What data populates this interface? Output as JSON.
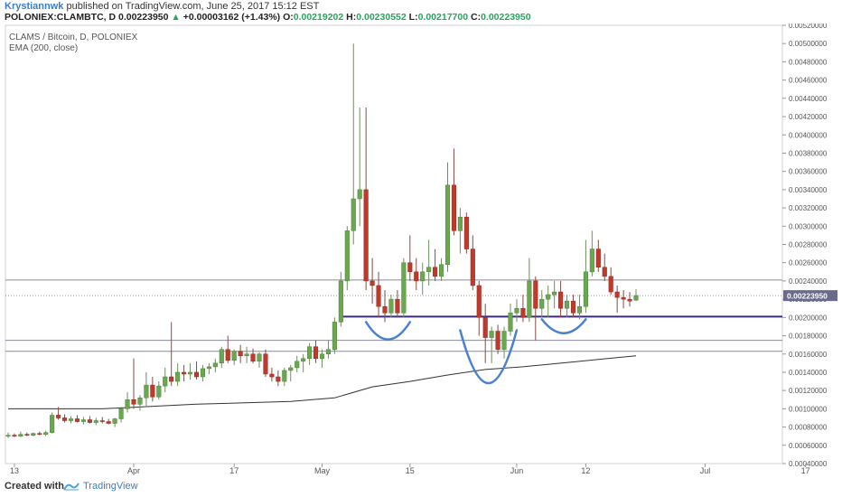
{
  "header": {
    "author": "Krystiannwk",
    "published": "published on TradingView.com, June 25, 2017 15:12 EST",
    "symbol": "POLONIEX:CLAMBTC, D",
    "last": "0.00223950",
    "change_arrow": "▲",
    "change": "+0.00003162 (+1.43%)",
    "o_label": "O:",
    "o_value": "0.00219202",
    "h_label": "H:",
    "h_value": "0.00230552",
    "l_label": "L:",
    "l_value": "0.00217700",
    "c_label": "C:",
    "c_value": "0.00223950"
  },
  "legend": {
    "title": "CLAMS / Bitcoin, D, POLONIEX",
    "indicator": "EMA (200, close)"
  },
  "footer": {
    "created": "Created with",
    "brand": "TradingView"
  },
  "colors": {
    "up": "#6aa84f",
    "down": "#c0392b",
    "ema": "#333333",
    "support": "#3c2a7a",
    "hline": "#8a8a9a",
    "arc": "#4a7fd1",
    "price_tag": "#6a6a8a"
  },
  "chart_data": {
    "type": "candlestick",
    "symbol": "CLAMS / Bitcoin, D, POLONIEX",
    "ylim": [
      0.0004,
      0.0052
    ],
    "y_ticks": [
      "0.00040000",
      "0.00060000",
      "0.00080000",
      "0.00100000",
      "0.00120000",
      "0.00140000",
      "0.00160000",
      "0.00180000",
      "0.00200000",
      "0.00220000",
      "0.00240000",
      "0.00260000",
      "0.00280000",
      "0.00300000",
      "0.00320000",
      "0.00340000",
      "0.00360000",
      "0.00380000",
      "0.00400000",
      "0.00420000",
      "0.00440000",
      "0.00460000",
      "0.00480000",
      "0.00500000",
      "0.00520000"
    ],
    "x_ticks": [
      {
        "label": "13",
        "i": 1
      },
      {
        "label": "Apr",
        "i": 20
      },
      {
        "label": "17",
        "i": 36
      },
      {
        "label": "May",
        "i": 50
      },
      {
        "label": "15",
        "i": 64
      },
      {
        "label": "Jun",
        "i": 81
      },
      {
        "label": "12",
        "i": 92
      },
      {
        "label": "Jul",
        "i": 111
      },
      {
        "label": "17",
        "i": 127
      }
    ],
    "last_price_label": "0.00223950",
    "last_price": 0.0022395,
    "candles": [
      {
        "o": 0.0007,
        "h": 0.00074,
        "l": 0.00068,
        "c": 0.00071
      },
      {
        "o": 0.00071,
        "h": 0.00073,
        "l": 0.00069,
        "c": 0.0007
      },
      {
        "o": 0.0007,
        "h": 0.00075,
        "l": 0.00069,
        "c": 0.00072
      },
      {
        "o": 0.00072,
        "h": 0.00074,
        "l": 0.0007,
        "c": 0.00071
      },
      {
        "o": 0.00071,
        "h": 0.00074,
        "l": 0.0007,
        "c": 0.00073
      },
      {
        "o": 0.00073,
        "h": 0.00075,
        "l": 0.00071,
        "c": 0.00072
      },
      {
        "o": 0.00072,
        "h": 0.00076,
        "l": 0.0007,
        "c": 0.00074
      },
      {
        "o": 0.00074,
        "h": 0.00096,
        "l": 0.00073,
        "c": 0.00093
      },
      {
        "o": 0.00093,
        "h": 0.00102,
        "l": 0.00088,
        "c": 0.0009
      },
      {
        "o": 0.0009,
        "h": 0.00094,
        "l": 0.00085,
        "c": 0.00087
      },
      {
        "o": 0.00087,
        "h": 0.00092,
        "l": 0.00084,
        "c": 0.00089
      },
      {
        "o": 0.00089,
        "h": 0.00093,
        "l": 0.00085,
        "c": 0.00086
      },
      {
        "o": 0.00086,
        "h": 0.00091,
        "l": 0.00083,
        "c": 0.00088
      },
      {
        "o": 0.00088,
        "h": 0.00092,
        "l": 0.00084,
        "c": 0.00085
      },
      {
        "o": 0.00085,
        "h": 0.0009,
        "l": 0.00082,
        "c": 0.00087
      },
      {
        "o": 0.00087,
        "h": 0.00091,
        "l": 0.00084,
        "c": 0.00086
      },
      {
        "o": 0.00086,
        "h": 0.00089,
        "l": 0.00083,
        "c": 0.00084
      },
      {
        "o": 0.00084,
        "h": 0.0009,
        "l": 0.0008,
        "c": 0.00089
      },
      {
        "o": 0.00089,
        "h": 0.00102,
        "l": 0.00085,
        "c": 0.001
      },
      {
        "o": 0.001,
        "h": 0.00118,
        "l": 0.00096,
        "c": 0.0011
      },
      {
        "o": 0.0011,
        "h": 0.00155,
        "l": 0.001,
        "c": 0.00105
      },
      {
        "o": 0.00105,
        "h": 0.00115,
        "l": 0.00098,
        "c": 0.00112
      },
      {
        "o": 0.00112,
        "h": 0.0014,
        "l": 0.00102,
        "c": 0.00126
      },
      {
        "o": 0.00126,
        "h": 0.00135,
        "l": 0.00108,
        "c": 0.00113
      },
      {
        "o": 0.00113,
        "h": 0.0013,
        "l": 0.0011,
        "c": 0.00125
      },
      {
        "o": 0.00125,
        "h": 0.00145,
        "l": 0.00118,
        "c": 0.00135
      },
      {
        "o": 0.00135,
        "h": 0.00195,
        "l": 0.00125,
        "c": 0.0013
      },
      {
        "o": 0.0013,
        "h": 0.0015,
        "l": 0.00125,
        "c": 0.0014
      },
      {
        "o": 0.0014,
        "h": 0.00148,
        "l": 0.0013,
        "c": 0.00138
      },
      {
        "o": 0.00138,
        "h": 0.0015,
        "l": 0.00132,
        "c": 0.0014
      },
      {
        "o": 0.0014,
        "h": 0.00152,
        "l": 0.00132,
        "c": 0.00135
      },
      {
        "o": 0.00135,
        "h": 0.00148,
        "l": 0.0013,
        "c": 0.00144
      },
      {
        "o": 0.00144,
        "h": 0.0015,
        "l": 0.00138,
        "c": 0.00146
      },
      {
        "o": 0.00146,
        "h": 0.00155,
        "l": 0.0014,
        "c": 0.0015
      },
      {
        "o": 0.0015,
        "h": 0.00168,
        "l": 0.00145,
        "c": 0.00165
      },
      {
        "o": 0.00165,
        "h": 0.0018,
        "l": 0.0015,
        "c": 0.00153
      },
      {
        "o": 0.00153,
        "h": 0.00165,
        "l": 0.00148,
        "c": 0.00163
      },
      {
        "o": 0.00163,
        "h": 0.0017,
        "l": 0.0015,
        "c": 0.00158
      },
      {
        "o": 0.00158,
        "h": 0.00168,
        "l": 0.0015,
        "c": 0.0016
      },
      {
        "o": 0.0016,
        "h": 0.00166,
        "l": 0.0015,
        "c": 0.00152
      },
      {
        "o": 0.00152,
        "h": 0.00162,
        "l": 0.00145,
        "c": 0.0016
      },
      {
        "o": 0.0016,
        "h": 0.00165,
        "l": 0.00135,
        "c": 0.00138
      },
      {
        "o": 0.00138,
        "h": 0.00145,
        "l": 0.0013,
        "c": 0.00135
      },
      {
        "o": 0.00135,
        "h": 0.00142,
        "l": 0.00125,
        "c": 0.0013
      },
      {
        "o": 0.0013,
        "h": 0.00145,
        "l": 0.00125,
        "c": 0.00142
      },
      {
        "o": 0.00142,
        "h": 0.00148,
        "l": 0.0013,
        "c": 0.00145
      },
      {
        "o": 0.00145,
        "h": 0.00158,
        "l": 0.0014,
        "c": 0.00152
      },
      {
        "o": 0.00152,
        "h": 0.0016,
        "l": 0.0014,
        "c": 0.00155
      },
      {
        "o": 0.00155,
        "h": 0.00172,
        "l": 0.00148,
        "c": 0.00168
      },
      {
        "o": 0.00168,
        "h": 0.00175,
        "l": 0.0015,
        "c": 0.00155
      },
      {
        "o": 0.00155,
        "h": 0.00165,
        "l": 0.00145,
        "c": 0.0016
      },
      {
        "o": 0.0016,
        "h": 0.00175,
        "l": 0.00155,
        "c": 0.00165
      },
      {
        "o": 0.00165,
        "h": 0.002,
        "l": 0.0016,
        "c": 0.00195
      },
      {
        "o": 0.00195,
        "h": 0.0025,
        "l": 0.0019,
        "c": 0.0024
      },
      {
        "o": 0.0024,
        "h": 0.003,
        "l": 0.0023,
        "c": 0.00295
      },
      {
        "o": 0.00295,
        "h": 0.005,
        "l": 0.0028,
        "c": 0.0033
      },
      {
        "o": 0.0033,
        "h": 0.0043,
        "l": 0.003,
        "c": 0.0034
      },
      {
        "o": 0.0034,
        "h": 0.0043,
        "l": 0.0023,
        "c": 0.0024
      },
      {
        "o": 0.0024,
        "h": 0.00265,
        "l": 0.00215,
        "c": 0.00235
      },
      {
        "o": 0.00235,
        "h": 0.0025,
        "l": 0.002,
        "c": 0.00212
      },
      {
        "o": 0.00212,
        "h": 0.0023,
        "l": 0.00195,
        "c": 0.00205
      },
      {
        "o": 0.00205,
        "h": 0.00225,
        "l": 0.002,
        "c": 0.0022
      },
      {
        "o": 0.0022,
        "h": 0.0023,
        "l": 0.002,
        "c": 0.00205
      },
      {
        "o": 0.00205,
        "h": 0.00265,
        "l": 0.002,
        "c": 0.0026
      },
      {
        "o": 0.0026,
        "h": 0.0029,
        "l": 0.0024,
        "c": 0.0025
      },
      {
        "o": 0.0025,
        "h": 0.00265,
        "l": 0.0023,
        "c": 0.0024
      },
      {
        "o": 0.0024,
        "h": 0.0026,
        "l": 0.00225,
        "c": 0.0025
      },
      {
        "o": 0.0025,
        "h": 0.00285,
        "l": 0.00235,
        "c": 0.00255
      },
      {
        "o": 0.00255,
        "h": 0.00275,
        "l": 0.0024,
        "c": 0.00245
      },
      {
        "o": 0.00245,
        "h": 0.00265,
        "l": 0.0024,
        "c": 0.00258
      },
      {
        "o": 0.00258,
        "h": 0.0037,
        "l": 0.0025,
        "c": 0.00345
      },
      {
        "o": 0.00345,
        "h": 0.00385,
        "l": 0.0029,
        "c": 0.00295
      },
      {
        "o": 0.00295,
        "h": 0.0032,
        "l": 0.0027,
        "c": 0.0031
      },
      {
        "o": 0.0031,
        "h": 0.00315,
        "l": 0.0027,
        "c": 0.00275
      },
      {
        "o": 0.00275,
        "h": 0.0029,
        "l": 0.0023,
        "c": 0.00235
      },
      {
        "o": 0.00235,
        "h": 0.0024,
        "l": 0.0018,
        "c": 0.002
      },
      {
        "o": 0.002,
        "h": 0.00215,
        "l": 0.0015,
        "c": 0.00178
      },
      {
        "o": 0.00178,
        "h": 0.0019,
        "l": 0.0015,
        "c": 0.00185
      },
      {
        "o": 0.00185,
        "h": 0.00192,
        "l": 0.0016,
        "c": 0.00165
      },
      {
        "o": 0.00165,
        "h": 0.0019,
        "l": 0.00155,
        "c": 0.00185
      },
      {
        "o": 0.00185,
        "h": 0.00215,
        "l": 0.0018,
        "c": 0.00205
      },
      {
        "o": 0.00205,
        "h": 0.0022,
        "l": 0.00195,
        "c": 0.0021
      },
      {
        "o": 0.0021,
        "h": 0.00225,
        "l": 0.00195,
        "c": 0.002
      },
      {
        "o": 0.002,
        "h": 0.00265,
        "l": 0.00195,
        "c": 0.0024
      },
      {
        "o": 0.0024,
        "h": 0.00245,
        "l": 0.00175,
        "c": 0.0021
      },
      {
        "o": 0.0021,
        "h": 0.0023,
        "l": 0.002,
        "c": 0.0022
      },
      {
        "o": 0.0022,
        "h": 0.00235,
        "l": 0.002,
        "c": 0.00225
      },
      {
        "o": 0.00225,
        "h": 0.0024,
        "l": 0.0021,
        "c": 0.00228
      },
      {
        "o": 0.00228,
        "h": 0.0024,
        "l": 0.002,
        "c": 0.0021
      },
      {
        "o": 0.0021,
        "h": 0.00225,
        "l": 0.002,
        "c": 0.00218
      },
      {
        "o": 0.00218,
        "h": 0.00225,
        "l": 0.002,
        "c": 0.00205
      },
      {
        "o": 0.00205,
        "h": 0.00225,
        "l": 0.00198,
        "c": 0.00212
      },
      {
        "o": 0.00212,
        "h": 0.00285,
        "l": 0.00205,
        "c": 0.0025
      },
      {
        "o": 0.0025,
        "h": 0.00295,
        "l": 0.00245,
        "c": 0.00275
      },
      {
        "o": 0.00275,
        "h": 0.00285,
        "l": 0.0025,
        "c": 0.00255
      },
      {
        "o": 0.00255,
        "h": 0.0027,
        "l": 0.0024,
        "c": 0.00245
      },
      {
        "o": 0.00245,
        "h": 0.00255,
        "l": 0.00225,
        "c": 0.00228
      },
      {
        "o": 0.00228,
        "h": 0.00235,
        "l": 0.00205,
        "c": 0.00222
      },
      {
        "o": 0.00222,
        "h": 0.0023,
        "l": 0.0021,
        "c": 0.0022
      },
      {
        "o": 0.0022,
        "h": 0.00228,
        "l": 0.00212,
        "c": 0.00218
      },
      {
        "o": 0.00219,
        "h": 0.00231,
        "l": 0.00218,
        "c": 0.00224
      }
    ],
    "ema": [
      {
        "i": 0,
        "v": 0.001
      },
      {
        "i": 15,
        "v": 0.001
      },
      {
        "i": 30,
        "v": 0.00105
      },
      {
        "i": 45,
        "v": 0.00108
      },
      {
        "i": 52,
        "v": 0.00112
      },
      {
        "i": 58,
        "v": 0.00124
      },
      {
        "i": 64,
        "v": 0.0013
      },
      {
        "i": 70,
        "v": 0.00137
      },
      {
        "i": 76,
        "v": 0.00143
      },
      {
        "i": 82,
        "v": 0.00146
      },
      {
        "i": 88,
        "v": 0.0015
      },
      {
        "i": 94,
        "v": 0.00154
      },
      {
        "i": 100,
        "v": 0.00158
      }
    ],
    "hlines": [
      {
        "v": 0.00241,
        "style": "thin"
      },
      {
        "v": 0.00201,
        "style": "support"
      },
      {
        "v": 0.00175,
        "style": "thin"
      },
      {
        "v": 0.00163,
        "style": "thin"
      }
    ],
    "arcs": [
      {
        "from": 57,
        "to": 64,
        "top": 0.00195,
        "bottom": 0.00175
      },
      {
        "from": 72,
        "to": 81,
        "top": 0.00186,
        "bottom": 0.00125
      },
      {
        "from": 85,
        "to": 92,
        "top": 0.00198,
        "bottom": 0.00182
      }
    ]
  }
}
